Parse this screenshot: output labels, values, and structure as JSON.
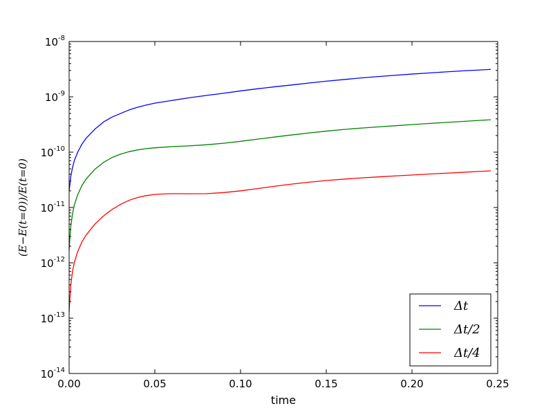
{
  "chart_data": {
    "type": "line",
    "title": "",
    "xlabel": "time",
    "ylabel": "(E−E(t=0))/E(t=0)",
    "xlim": [
      0.0,
      0.25
    ],
    "ylim": [
      1e-14,
      1e-08
    ],
    "yscale": "log",
    "grid": false,
    "legend_position": "lower-right",
    "x_ticks": [
      {
        "value": 0.0,
        "label": "0.00"
      },
      {
        "value": 0.05,
        "label": "0.05"
      },
      {
        "value": 0.1,
        "label": "0.10"
      },
      {
        "value": 0.15,
        "label": "0.15"
      },
      {
        "value": 0.2,
        "label": "0.20"
      },
      {
        "value": 0.25,
        "label": "0.25"
      }
    ],
    "y_ticks": [
      {
        "value": 1e-14,
        "base": "10",
        "exp": "-14"
      },
      {
        "value": 1e-13,
        "base": "10",
        "exp": "-13"
      },
      {
        "value": 1e-12,
        "base": "10",
        "exp": "-12"
      },
      {
        "value": 1e-11,
        "base": "10",
        "exp": "-11"
      },
      {
        "value": 1e-10,
        "base": "10",
        "exp": "-10"
      },
      {
        "value": 1e-09,
        "base": "10",
        "exp": "-9"
      },
      {
        "value": 1e-08,
        "base": "10",
        "exp": "-8"
      }
    ],
    "series": [
      {
        "name": "Δt",
        "color": "#0000ff",
        "x": [
          0.0,
          0.0005,
          0.001,
          0.002,
          0.003,
          0.005,
          0.0075,
          0.01,
          0.015,
          0.02,
          0.025,
          0.03,
          0.035,
          0.04,
          0.045,
          0.05,
          0.06,
          0.07,
          0.08,
          0.09,
          0.1,
          0.11,
          0.12,
          0.13,
          0.14,
          0.15,
          0.16,
          0.17,
          0.18,
          0.19,
          0.2,
          0.21,
          0.22,
          0.23,
          0.24,
          0.246
        ],
        "y": [
          2e-11,
          2.7e-11,
          3.7e-11,
          5.3e-11,
          7e-11,
          1e-10,
          1.4e-10,
          1.8e-10,
          2.6e-10,
          3.5e-10,
          4.3e-10,
          5e-10,
          5.8e-10,
          6.5e-10,
          7.1e-10,
          7.7e-10,
          8.6e-10,
          9.6e-10,
          1.06e-09,
          1.16e-09,
          1.28e-09,
          1.4e-09,
          1.52e-09,
          1.64e-09,
          1.78e-09,
          1.92e-09,
          2.05e-09,
          2.19e-09,
          2.32e-09,
          2.45e-09,
          2.58e-09,
          2.7e-09,
          2.83e-09,
          2.95e-09,
          3.06e-09,
          3.14e-09
        ]
      },
      {
        "name": "Δt/2",
        "color": "#008000",
        "x": [
          0.0,
          0.0005,
          0.001,
          0.002,
          0.003,
          0.005,
          0.0075,
          0.01,
          0.015,
          0.02,
          0.025,
          0.03,
          0.035,
          0.04,
          0.045,
          0.05,
          0.055,
          0.06,
          0.07,
          0.08,
          0.09,
          0.1,
          0.11,
          0.12,
          0.13,
          0.14,
          0.15,
          0.16,
          0.17,
          0.18,
          0.19,
          0.2,
          0.21,
          0.22,
          0.23,
          0.24,
          0.246
        ],
        "y": [
          1.7e-12,
          3e-12,
          4.6e-12,
          7.8e-12,
          1.1e-11,
          1.7e-11,
          2.5e-11,
          3.3e-11,
          4.9e-11,
          6.5e-11,
          8e-11,
          9.2e-11,
          1.02e-10,
          1.1e-10,
          1.16e-10,
          1.2e-10,
          1.23e-10,
          1.26e-10,
          1.3e-10,
          1.36e-10,
          1.45e-10,
          1.57e-10,
          1.72e-10,
          1.88e-10,
          2.05e-10,
          2.22e-10,
          2.4e-10,
          2.57e-10,
          2.72e-10,
          2.86e-10,
          3e-10,
          3.15e-10,
          3.3e-10,
          3.45e-10,
          3.6e-10,
          3.76e-10,
          3.85e-10
        ]
      },
      {
        "name": "Δt/4",
        "color": "#ff0000",
        "x": [
          0.0,
          0.0005,
          0.001,
          0.002,
          0.003,
          0.005,
          0.0075,
          0.01,
          0.015,
          0.02,
          0.025,
          0.03,
          0.035,
          0.04,
          0.045,
          0.05,
          0.055,
          0.06,
          0.07,
          0.08,
          0.09,
          0.1,
          0.11,
          0.12,
          0.13,
          0.14,
          0.15,
          0.16,
          0.17,
          0.18,
          0.19,
          0.2,
          0.21,
          0.22,
          0.23,
          0.24,
          0.246
        ],
        "y": [
          1.3e-13,
          2.4e-13,
          4e-13,
          7e-13,
          1e-12,
          1.6e-12,
          2.4e-12,
          3.2e-12,
          5e-12,
          7e-12,
          9.2e-12,
          1.14e-11,
          1.35e-11,
          1.52e-11,
          1.64e-11,
          1.72e-11,
          1.76e-11,
          1.78e-11,
          1.77e-11,
          1.78e-11,
          1.86e-11,
          2e-11,
          2.2e-11,
          2.42e-11,
          2.65e-11,
          2.87e-11,
          3.07e-11,
          3.25e-11,
          3.42e-11,
          3.57e-11,
          3.72e-11,
          3.87e-11,
          4.02e-11,
          4.17e-11,
          4.33e-11,
          4.5e-11,
          4.6e-11
        ]
      }
    ]
  }
}
